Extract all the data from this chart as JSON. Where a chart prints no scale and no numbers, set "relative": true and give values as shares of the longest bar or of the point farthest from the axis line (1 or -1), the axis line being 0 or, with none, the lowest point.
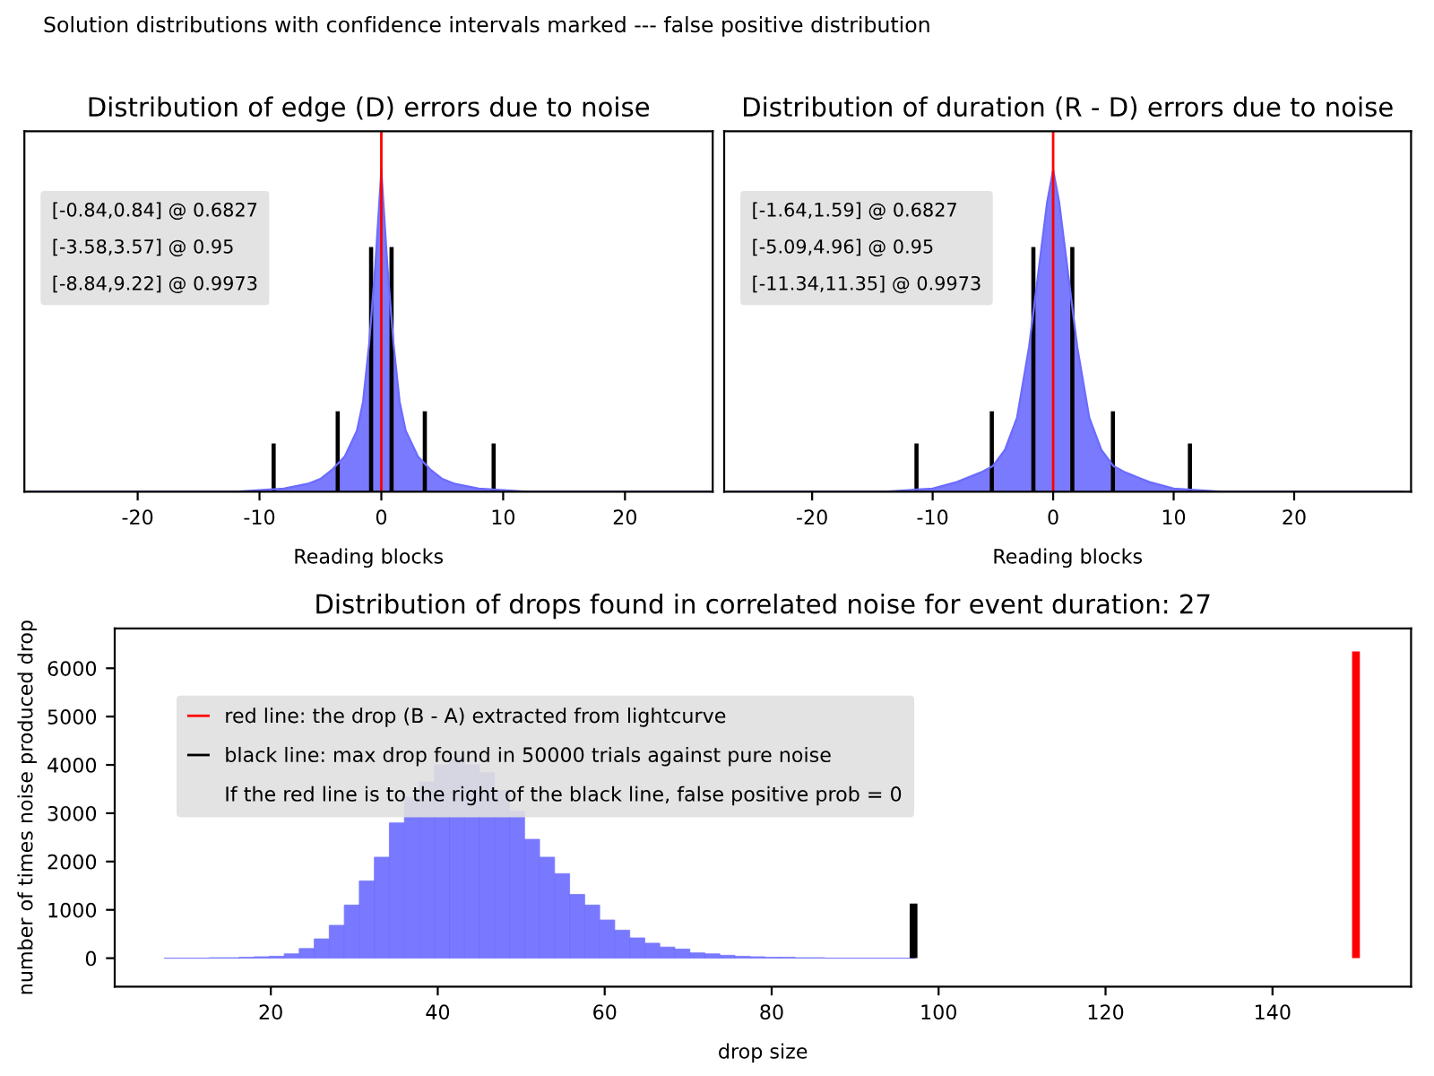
{
  "chart_data": [
    {
      "type": "area",
      "title": "Distribution of edge (D) errors due to noise",
      "xlabel": "Reading blocks",
      "relative": true,
      "annotations": [
        "Solution distributions with confidence intervals marked --- false positive distribution",
        "[-0.84,0.84] @ 0.6827",
        "[-3.58,3.57] @ 0.95",
        "[-8.84,9.22] @ 0.9973"
      ],
      "xlim": [
        -29.3,
        27.2
      ],
      "xticks": [
        -20,
        -10,
        0,
        10,
        20
      ],
      "tick_labels": "x",
      "grid": false,
      "legend": "top left",
      "ref_lines": [
        {
          "axis": "x",
          "value": 0,
          "color": "#ff0000"
        }
      ],
      "series": [
        {
          "type": "area",
          "color": "#6b6bff",
          "x": [
            -29,
            -12,
            -8,
            -6,
            -5,
            -4,
            -3,
            -2,
            -1.5,
            -1,
            -0.5,
            -0.25,
            0,
            0.25,
            0.5,
            1,
            1.5,
            2,
            3,
            4,
            5,
            6,
            8,
            12,
            27
          ],
          "values": [
            0,
            0,
            0.01,
            0.025,
            0.04,
            0.07,
            0.11,
            0.19,
            0.28,
            0.46,
            0.7,
            0.85,
            1,
            0.85,
            0.7,
            0.46,
            0.28,
            0.19,
            0.11,
            0.07,
            0.04,
            0.025,
            0.01,
            0,
            0
          ]
        },
        {
          "type": "bar",
          "color": "#000000",
          "x": [
            -8.84,
            -3.58,
            -0.84,
            0.84,
            3.57,
            9.22
          ],
          "values": [
            0.15,
            0.25,
            0.76,
            0.76,
            0.25,
            0.15
          ]
        }
      ]
    },
    {
      "type": "area",
      "title": "Distribution of duration (R - D) errors due to noise",
      "xlabel": "Reading blocks",
      "relative": true,
      "annotations": [
        "[-1.64,1.59] @ 0.6827",
        "[-5.09,4.96] @ 0.95",
        "[-11.34,11.35] @ 0.9973"
      ],
      "xlim": [
        -27.3,
        29.7
      ],
      "xticks": [
        -20,
        -10,
        0,
        10,
        20
      ],
      "tick_labels": "x",
      "grid": false,
      "legend": "top left",
      "ref_lines": [
        {
          "axis": "x",
          "value": 0,
          "color": "#ff0000"
        }
      ],
      "series": [
        {
          "type": "area",
          "color": "#6b6bff",
          "x": [
            -27,
            -14,
            -10,
            -8,
            -6,
            -5,
            -4,
            -3,
            -2,
            -1.5,
            -1,
            -0.5,
            0,
            0.5,
            1,
            1.5,
            2,
            3,
            4,
            5,
            6,
            8,
            10,
            14,
            29
          ],
          "values": [
            0,
            0,
            0.01,
            0.03,
            0.06,
            0.08,
            0.13,
            0.23,
            0.45,
            0.6,
            0.75,
            0.9,
            1,
            0.9,
            0.75,
            0.6,
            0.45,
            0.23,
            0.13,
            0.08,
            0.06,
            0.03,
            0.01,
            0,
            0
          ]
        },
        {
          "type": "bar",
          "color": "#000000",
          "x": [
            -11.34,
            -5.09,
            -1.64,
            1.59,
            4.96,
            11.35
          ],
          "values": [
            0.15,
            0.25,
            0.76,
            0.76,
            0.25,
            0.15
          ]
        }
      ]
    },
    {
      "type": "histogram",
      "title": "Distribution of drops found in correlated noise for event duration: 27",
      "xlabel": "drop size",
      "ylabel": "number of times noise produced drop",
      "xlim": [
        1.3,
        156.6
      ],
      "xticks": [
        20,
        40,
        60,
        80,
        100,
        120,
        140
      ],
      "ylim": [
        -590,
        6825
      ],
      "yticks": [
        0,
        1000,
        2000,
        3000,
        4000,
        5000,
        6000
      ],
      "grid": false,
      "legend": "top left",
      "annotations": [
        "If the red line is to the right of the black line, false positive prob = 0"
      ],
      "color": "#6b6bff",
      "bins": [
        7.2,
        9.0,
        10.8,
        12.6,
        14.4,
        16.2,
        18.0,
        19.8,
        21.6,
        23.4,
        25.2,
        27.0,
        28.8,
        30.6,
        32.4,
        34.2,
        36.0,
        37.8,
        39.6,
        41.4,
        43.2,
        45.0,
        46.8,
        48.6,
        50.4,
        52.2,
        54.0,
        55.8,
        57.6,
        59.4,
        61.2,
        63.0,
        64.8,
        66.6,
        68.4,
        70.2,
        72.0,
        73.8,
        75.6,
        77.4,
        79.2,
        81.0,
        82.8,
        84.6,
        86.4,
        88.2,
        90.0,
        91.8,
        93.6,
        95.4,
        97.2
      ],
      "values": [
        0,
        0,
        0,
        10,
        10,
        20,
        30,
        40,
        90,
        200,
        400,
        680,
        1100,
        1600,
        2090,
        2800,
        3330,
        3650,
        4000,
        4150,
        4000,
        3840,
        3470,
        3040,
        2460,
        2090,
        1750,
        1320,
        1100,
        790,
        580,
        420,
        310,
        230,
        190,
        110,
        90,
        60,
        40,
        30,
        20,
        20,
        10,
        10,
        0,
        0,
        0,
        0,
        0,
        0
      ],
      "series": [
        {
          "type": "bar",
          "name": "red line: the drop (B - A) extracted from lightcurve",
          "color": "#ff0000",
          "x": [
            150
          ],
          "values": [
            6350
          ]
        },
        {
          "type": "bar",
          "name": "black line: max drop found in 50000 trials against pure noise",
          "color": "#000000",
          "x": [
            97
          ],
          "values": [
            1130
          ]
        }
      ]
    }
  ]
}
